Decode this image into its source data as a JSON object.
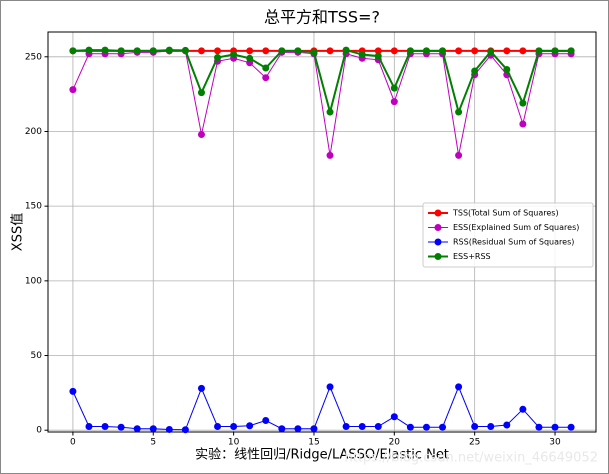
{
  "chart_data": {
    "type": "line",
    "title": "总平方和TSS=?",
    "x_label": "实验：线性回归/Ridge/LASSO/Elastic Net",
    "y_label": "XSS值",
    "watermark": "https://blog.csdn.net/weixin_46649052",
    "x": [
      0,
      1,
      2,
      3,
      4,
      5,
      6,
      7,
      8,
      9,
      10,
      11,
      12,
      13,
      14,
      15,
      16,
      17,
      18,
      19,
      20,
      21,
      22,
      23,
      24,
      25,
      26,
      27,
      28,
      29,
      30,
      31
    ],
    "series": [
      {
        "name": "TSS(Total Sum of Squares)",
        "color": "#ff0000",
        "values": [
          254,
          254,
          254,
          254,
          254,
          254,
          254,
          254,
          254,
          254,
          254,
          254,
          254,
          254,
          254,
          254,
          254,
          254,
          254,
          254,
          254,
          254,
          254,
          254,
          254,
          254,
          254,
          254,
          254,
          254,
          254,
          254
        ]
      },
      {
        "name": "ESS(Explained Sum of Squares)",
        "color": "#bf00bf",
        "values": [
          228,
          252,
          252,
          252,
          253,
          253,
          254,
          254,
          198,
          247,
          249,
          246,
          236,
          253,
          253,
          252,
          184,
          252,
          249,
          248,
          220,
          252,
          252,
          252,
          184,
          238,
          251,
          238,
          205,
          252,
          252,
          252
        ]
      },
      {
        "name": "RSS(Residual Sum of Squares)",
        "color": "#0000ff",
        "values": [
          26,
          2.5,
          2.5,
          2,
          1,
          1,
          0.5,
          0.3,
          28,
          2.5,
          2.5,
          3,
          6.5,
          1,
          1,
          1,
          29,
          2.5,
          2.5,
          2.5,
          9,
          2,
          2,
          2,
          29,
          2.5,
          2.5,
          3.5,
          14,
          2,
          2,
          2
        ]
      },
      {
        "name": "ESS+RSS",
        "color": "#008000",
        "values": [
          254,
          254.5,
          254.5,
          254,
          254,
          254,
          254.5,
          254.3,
          226,
          249.5,
          251.5,
          249,
          242.5,
          254,
          254,
          253,
          213,
          254.5,
          251.5,
          250.5,
          229,
          254,
          254,
          254,
          213,
          240.5,
          253.5,
          241.5,
          219,
          254,
          254,
          254
        ]
      }
    ],
    "xlim": [
      -1.55,
      32.55
    ],
    "ylim": [
      -1.2,
      266.6
    ],
    "xticks": [
      0,
      5,
      10,
      15,
      20,
      25,
      30
    ],
    "yticks": [
      0,
      50,
      100,
      150,
      200,
      250
    ],
    "grid": true,
    "legend_position": "right"
  }
}
